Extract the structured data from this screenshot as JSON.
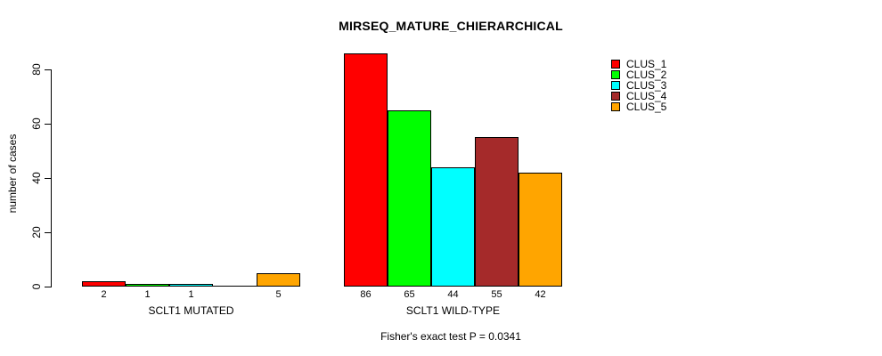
{
  "title": "MIRSEQ_MATURE_CHIERARCHICAL",
  "footer": "Fisher's exact test P = 0.0341",
  "y_axis": {
    "label": "number of cases",
    "ticks": [
      0,
      20,
      40,
      60,
      80
    ]
  },
  "legend": {
    "entries": [
      {
        "label": "CLUS_1",
        "color": "#FF0000"
      },
      {
        "label": "CLUS_2",
        "color": "#00FF00"
      },
      {
        "label": "CLUS_3",
        "color": "#00FFFF"
      },
      {
        "label": "CLUS_4",
        "color": "#A52A2A"
      },
      {
        "label": "CLUS_5",
        "color": "#FFA500"
      }
    ]
  },
  "chart_data": {
    "type": "bar",
    "title": "MIRSEQ_MATURE_CHIERARCHICAL",
    "xlabel": "",
    "ylabel": "number of cases",
    "ylim": [
      0,
      80
    ],
    "yticks": [
      0,
      20,
      40,
      60,
      80
    ],
    "grid": false,
    "legend_position": "right",
    "categories": [
      "SCLT1 MUTATED",
      "SCLT1 WILD-TYPE"
    ],
    "series": [
      {
        "name": "CLUS_1",
        "color": "#FF0000",
        "values": [
          2,
          86
        ]
      },
      {
        "name": "CLUS_2",
        "color": "#00FF00",
        "values": [
          1,
          65
        ]
      },
      {
        "name": "CLUS_3",
        "color": "#00FFFF",
        "values": [
          1,
          44
        ]
      },
      {
        "name": "CLUS_4",
        "color": "#A52A2A",
        "values": [
          0,
          55
        ]
      },
      {
        "name": "CLUS_5",
        "color": "#FFA500",
        "values": [
          5,
          42
        ]
      }
    ],
    "bar_value_labels": [
      [
        "2",
        "1",
        "1",
        "",
        "5"
      ],
      [
        "86",
        "65",
        "44",
        "55",
        "42"
      ]
    ],
    "annotation": "Fisher's exact test P = 0.0341"
  }
}
